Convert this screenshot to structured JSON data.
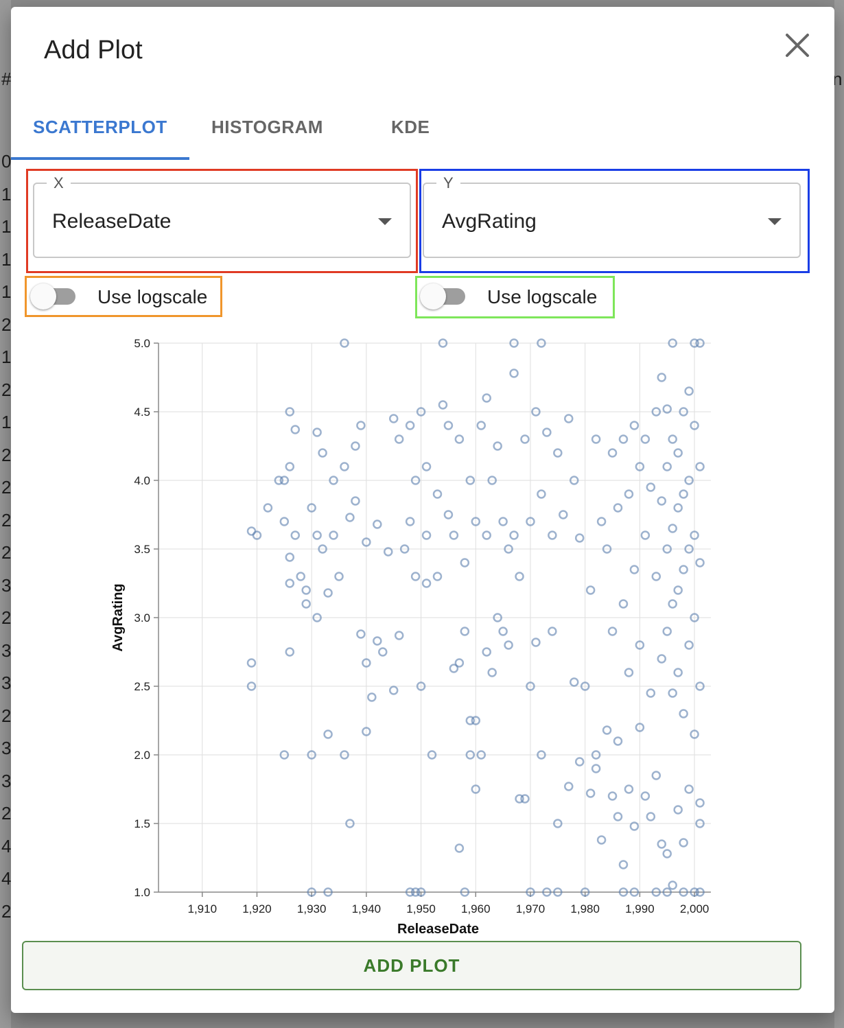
{
  "background": {
    "left_chars": [
      "#",
      "0",
      "1",
      "1",
      "1",
      "1",
      "2",
      "1",
      "2",
      "1",
      "2",
      "2",
      "2",
      "2",
      "3",
      "2",
      "3",
      "3",
      "2",
      "3",
      "3",
      "2",
      "4",
      "4",
      "2"
    ],
    "right_char": "n"
  },
  "dialog": {
    "title": "Add Plot",
    "close_icon": "close-icon"
  },
  "tabs": [
    {
      "label": "SCATTERPLOT",
      "active": true
    },
    {
      "label": "HISTOGRAM",
      "active": false
    },
    {
      "label": "KDE",
      "active": false
    }
  ],
  "x_select": {
    "legend": "X",
    "value": "ReleaseDate",
    "highlight_color": "#e03b24"
  },
  "y_select": {
    "legend": "Y",
    "value": "AvgRating",
    "highlight_color": "#1a3ee6"
  },
  "x_logscale": {
    "label": "Use logscale",
    "on": false,
    "highlight_color": "#f0962c"
  },
  "y_logscale": {
    "label": "Use logscale",
    "on": false,
    "highlight_color": "#7ee65a"
  },
  "colors": {
    "accent": "#3b78d0",
    "point": "#5b7fad",
    "button_text": "#3a7a2a"
  },
  "chart_data": {
    "type": "scatter",
    "xlabel": "ReleaseDate",
    "ylabel": "AvgRating",
    "xlim": [
      1902,
      2003
    ],
    "ylim": [
      1.0,
      5.0
    ],
    "xticks": [
      1910,
      1920,
      1930,
      1940,
      1950,
      1960,
      1970,
      1980,
      1990,
      2000
    ],
    "xtick_labels": [
      "1,910",
      "1,920",
      "1,930",
      "1,940",
      "1,950",
      "1,960",
      "1,970",
      "1,980",
      "1,990",
      "2,000"
    ],
    "yticks": [
      1.0,
      1.5,
      2.0,
      2.5,
      3.0,
      3.5,
      4.0,
      4.5,
      5.0
    ],
    "ytick_labels": [
      "1.0",
      "1.5",
      "2.0",
      "2.5",
      "3.0",
      "3.5",
      "4.0",
      "4.5",
      "5.0"
    ],
    "grid": true,
    "marker": "hollow-circle",
    "points": [
      [
        1919,
        3.63
      ],
      [
        1919,
        2.67
      ],
      [
        1919,
        2.5
      ],
      [
        1920,
        3.6
      ],
      [
        1922,
        3.8
      ],
      [
        1924,
        4.0
      ],
      [
        1925,
        3.7
      ],
      [
        1925,
        4.0
      ],
      [
        1925,
        2.0
      ],
      [
        1926,
        4.5
      ],
      [
        1926,
        4.1
      ],
      [
        1926,
        3.44
      ],
      [
        1926,
        3.25
      ],
      [
        1926,
        2.75
      ],
      [
        1927,
        4.37
      ],
      [
        1927,
        3.6
      ],
      [
        1928,
        3.3
      ],
      [
        1929,
        3.2
      ],
      [
        1929,
        3.1
      ],
      [
        1930,
        3.8
      ],
      [
        1930,
        2.0
      ],
      [
        1930,
        1.0
      ],
      [
        1931,
        4.35
      ],
      [
        1931,
        3.6
      ],
      [
        1931,
        3.0
      ],
      [
        1932,
        4.2
      ],
      [
        1932,
        3.5
      ],
      [
        1933,
        3.18
      ],
      [
        1933,
        2.15
      ],
      [
        1933,
        1.0
      ],
      [
        1934,
        4.0
      ],
      [
        1934,
        3.6
      ],
      [
        1935,
        3.3
      ],
      [
        1936,
        5.0
      ],
      [
        1936,
        4.1
      ],
      [
        1936,
        2.0
      ],
      [
        1937,
        1.5
      ],
      [
        1937,
        3.73
      ],
      [
        1938,
        4.25
      ],
      [
        1938,
        3.85
      ],
      [
        1939,
        2.88
      ],
      [
        1939,
        4.4
      ],
      [
        1940,
        3.55
      ],
      [
        1940,
        2.67
      ],
      [
        1940,
        2.17
      ],
      [
        1941,
        2.42
      ],
      [
        1942,
        2.83
      ],
      [
        1942,
        3.68
      ],
      [
        1943,
        2.75
      ],
      [
        1944,
        3.48
      ],
      [
        1945,
        2.47
      ],
      [
        1945,
        4.45
      ],
      [
        1946,
        2.87
      ],
      [
        1946,
        4.3
      ],
      [
        1947,
        3.5
      ],
      [
        1948,
        3.7
      ],
      [
        1948,
        4.4
      ],
      [
        1948,
        1.0
      ],
      [
        1949,
        4.0
      ],
      [
        1949,
        3.3
      ],
      [
        1949,
        1.0
      ],
      [
        1950,
        2.5
      ],
      [
        1950,
        4.5
      ],
      [
        1950,
        1.0
      ],
      [
        1951,
        3.25
      ],
      [
        1951,
        4.1
      ],
      [
        1951,
        3.6
      ],
      [
        1952,
        2.0
      ],
      [
        1953,
        3.9
      ],
      [
        1953,
        3.3
      ],
      [
        1954,
        5.0
      ],
      [
        1954,
        4.55
      ],
      [
        1955,
        3.75
      ],
      [
        1955,
        4.4
      ],
      [
        1956,
        2.63
      ],
      [
        1956,
        3.6
      ],
      [
        1957,
        1.32
      ],
      [
        1957,
        2.67
      ],
      [
        1957,
        4.3
      ],
      [
        1958,
        3.4
      ],
      [
        1958,
        2.9
      ],
      [
        1958,
        1.0
      ],
      [
        1959,
        2.25
      ],
      [
        1959,
        2.0
      ],
      [
        1959,
        4.0
      ],
      [
        1960,
        1.75
      ],
      [
        1960,
        2.25
      ],
      [
        1960,
        3.7
      ],
      [
        1961,
        2.0
      ],
      [
        1961,
        4.4
      ],
      [
        1962,
        4.6
      ],
      [
        1962,
        3.6
      ],
      [
        1962,
        2.75
      ],
      [
        1963,
        4.0
      ],
      [
        1963,
        2.6
      ],
      [
        1964,
        4.25
      ],
      [
        1964,
        3.0
      ],
      [
        1965,
        2.9
      ],
      [
        1965,
        3.7
      ],
      [
        1966,
        3.5
      ],
      [
        1966,
        2.8
      ],
      [
        1967,
        4.78
      ],
      [
        1967,
        5.0
      ],
      [
        1967,
        3.6
      ],
      [
        1968,
        1.68
      ],
      [
        1968,
        3.3
      ],
      [
        1969,
        1.68
      ],
      [
        1969,
        4.3
      ],
      [
        1970,
        3.7
      ],
      [
        1970,
        2.5
      ],
      [
        1970,
        1.0
      ],
      [
        1971,
        2.82
      ],
      [
        1971,
        4.5
      ],
      [
        1972,
        5.0
      ],
      [
        1972,
        3.9
      ],
      [
        1972,
        2.0
      ],
      [
        1973,
        1.0
      ],
      [
        1973,
        4.35
      ],
      [
        1974,
        2.9
      ],
      [
        1974,
        3.6
      ],
      [
        1975,
        4.2
      ],
      [
        1975,
        1.5
      ],
      [
        1975,
        1.0
      ],
      [
        1976,
        3.75
      ],
      [
        1977,
        4.45
      ],
      [
        1977,
        1.77
      ],
      [
        1978,
        4.0
      ],
      [
        1978,
        2.53
      ],
      [
        1979,
        3.58
      ],
      [
        1979,
        1.95
      ],
      [
        1980,
        1.0
      ],
      [
        1980,
        2.5
      ],
      [
        1981,
        1.72
      ],
      [
        1981,
        3.2
      ],
      [
        1982,
        4.3
      ],
      [
        1982,
        2.0
      ],
      [
        1982,
        1.9
      ],
      [
        1983,
        1.38
      ],
      [
        1983,
        3.7
      ],
      [
        1984,
        2.18
      ],
      [
        1984,
        3.5
      ],
      [
        1985,
        4.2
      ],
      [
        1985,
        2.9
      ],
      [
        1985,
        1.7
      ],
      [
        1986,
        3.8
      ],
      [
        1986,
        2.1
      ],
      [
        1986,
        1.55
      ],
      [
        1987,
        4.3
      ],
      [
        1987,
        3.1
      ],
      [
        1987,
        1.2
      ],
      [
        1987,
        1.0
      ],
      [
        1988,
        3.9
      ],
      [
        1988,
        2.6
      ],
      [
        1988,
        1.75
      ],
      [
        1989,
        4.4
      ],
      [
        1989,
        3.35
      ],
      [
        1989,
        1.48
      ],
      [
        1989,
        1.0
      ],
      [
        1990,
        4.1
      ],
      [
        1990,
        2.8
      ],
      [
        1990,
        2.2
      ],
      [
        1991,
        4.3
      ],
      [
        1991,
        3.6
      ],
      [
        1991,
        1.7
      ],
      [
        1992,
        3.95
      ],
      [
        1992,
        2.45
      ],
      [
        1992,
        1.55
      ],
      [
        1993,
        4.5
      ],
      [
        1993,
        3.3
      ],
      [
        1993,
        1.85
      ],
      [
        1993,
        1.0
      ],
      [
        1994,
        4.75
      ],
      [
        1994,
        3.85
      ],
      [
        1994,
        2.7
      ],
      [
        1994,
        1.35
      ],
      [
        1995,
        4.52
      ],
      [
        1995,
        4.1
      ],
      [
        1995,
        3.5
      ],
      [
        1995,
        2.9
      ],
      [
        1995,
        1.28
      ],
      [
        1995,
        1.0
      ],
      [
        1996,
        5.0
      ],
      [
        1996,
        4.3
      ],
      [
        1996,
        3.65
      ],
      [
        1996,
        3.1
      ],
      [
        1996,
        2.45
      ],
      [
        1996,
        1.05
      ],
      [
        1997,
        4.2
      ],
      [
        1997,
        3.8
      ],
      [
        1997,
        3.2
      ],
      [
        1997,
        2.6
      ],
      [
        1997,
        1.6
      ],
      [
        1998,
        4.5
      ],
      [
        1998,
        3.9
      ],
      [
        1998,
        3.35
      ],
      [
        1998,
        2.3
      ],
      [
        1998,
        1.36
      ],
      [
        1998,
        1.0
      ],
      [
        1999,
        4.65
      ],
      [
        1999,
        4.0
      ],
      [
        1999,
        3.5
      ],
      [
        1999,
        2.8
      ],
      [
        1999,
        1.75
      ],
      [
        2000,
        5.0
      ],
      [
        2000,
        4.4
      ],
      [
        2000,
        3.6
      ],
      [
        2000,
        3.0
      ],
      [
        2000,
        2.15
      ],
      [
        2000,
        1.0
      ],
      [
        2001,
        5.0
      ],
      [
        2001,
        4.1
      ],
      [
        2001,
        3.4
      ],
      [
        2001,
        2.5
      ],
      [
        2001,
        1.65
      ],
      [
        2001,
        1.5
      ],
      [
        2001,
        1.0
      ]
    ]
  },
  "add_button": {
    "label": "ADD PLOT"
  }
}
